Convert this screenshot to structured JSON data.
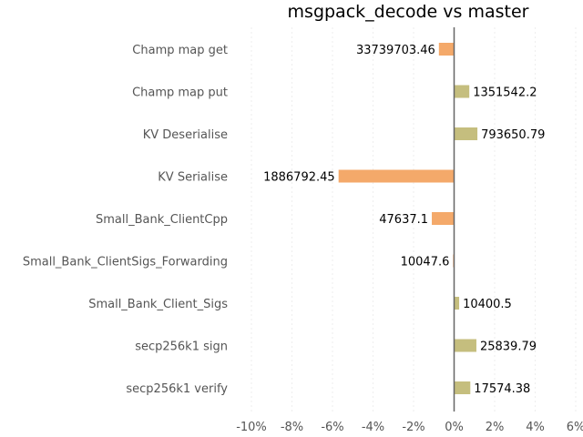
{
  "chart_data": {
    "type": "bar",
    "orientation": "horizontal",
    "title": "msgpack_decode vs master",
    "xlabel": "",
    "ylabel": "",
    "xlim": [
      -10,
      6
    ],
    "xticks": [
      -10,
      -8,
      -6,
      -4,
      -2,
      0,
      2,
      4,
      6
    ],
    "xtick_labels": [
      "-10%",
      "-8%",
      "-6%",
      "-4%",
      "-2%",
      "0%",
      "2%",
      "4%",
      "6%"
    ],
    "grid": true,
    "categories": [
      "Champ map get",
      "Champ map put",
      "KV Deserialise",
      "KV Serialise",
      "Small_Bank_ClientCpp",
      "Small_Bank_ClientSigs_Forwarding",
      "Small_Bank_Client_Sigs",
      "secp256k1 sign",
      "secp256k1 verify"
    ],
    "values": [
      -0.75,
      0.75,
      1.15,
      -5.7,
      -1.1,
      -0.05,
      0.25,
      1.1,
      0.8
    ],
    "data_labels": [
      "33739703.46",
      "1351542.2",
      "793650.79",
      "1886792.45",
      "47637.1",
      "10047.6",
      "10400.5",
      "25839.79",
      "17574.38"
    ],
    "colors": {
      "negative": "#f4a96a",
      "positive": "#c5be7e"
    }
  }
}
